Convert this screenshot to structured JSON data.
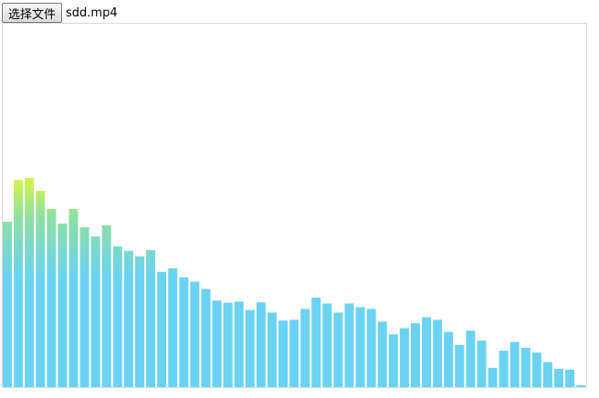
{
  "file_input": {
    "button_label": "选择文件",
    "file_name": "sdd.mp4"
  },
  "visualizer": {
    "colors": {
      "top": "#e6fa31",
      "mid": "#8ee0a0",
      "base": "#6ad3f4"
    },
    "bar_levels": [
      0.455,
      0.57,
      0.575,
      0.54,
      0.49,
      0.45,
      0.49,
      0.44,
      0.415,
      0.445,
      0.387,
      0.375,
      0.36,
      0.377,
      0.317,
      0.327,
      0.302,
      0.29,
      0.27,
      0.238,
      0.232,
      0.235,
      0.212,
      0.233,
      0.205,
      0.183,
      0.185,
      0.215,
      0.246,
      0.23,
      0.205,
      0.23,
      0.22,
      0.215,
      0.18,
      0.145,
      0.162,
      0.176,
      0.192,
      0.185,
      0.152,
      0.116,
      0.155,
      0.128,
      0.053,
      0.1,
      0.124,
      0.108,
      0.095,
      0.068,
      0.05,
      0.048,
      0.005,
      0.068
    ]
  }
}
